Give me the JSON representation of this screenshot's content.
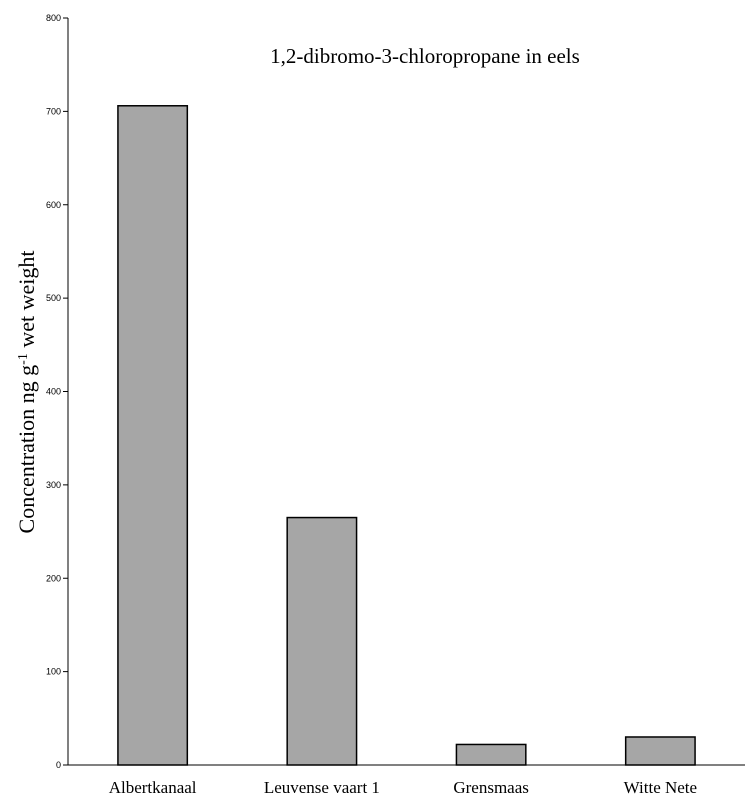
{
  "chart_data": {
    "type": "bar",
    "title": "1,2-dibromo-3-chloropropane in eels",
    "ylabel": {
      "prefix": "Concentration ng g",
      "superscript": "-1",
      "suffix": " wet weight"
    },
    "xlabel": "",
    "categories": [
      "Albertkanaal",
      "Leuvense vaart 1",
      "Grensmaas",
      "Witte Nete"
    ],
    "values": [
      706,
      265,
      22,
      30
    ],
    "ylim": [
      0,
      800
    ],
    "yticks": [
      "0",
      "100",
      "200",
      "300",
      "400",
      "500",
      "600",
      "700",
      "800"
    ],
    "grid": false,
    "legend": "none",
    "bar_color": "#a6a6a6",
    "bar_edge_color": "#000000"
  }
}
